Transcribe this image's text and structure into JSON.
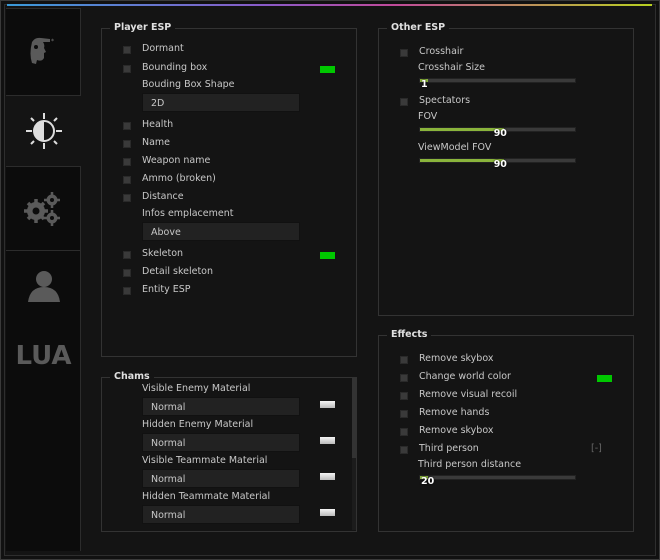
{
  "colors": {
    "accent_green": "#8ab43c",
    "swatch_green": "#00c800",
    "swatch_white": "#e0e0e0"
  },
  "sidebar": {
    "tabs": [
      {
        "icon": "head-aim-icon"
      },
      {
        "icon": "brightness-icon",
        "selected": true
      },
      {
        "icon": "gears-icon"
      },
      {
        "icon": "user-icon"
      },
      {
        "label": "LUA"
      }
    ]
  },
  "player_esp": {
    "title": "Player ESP",
    "dormant": "Dormant",
    "bounding_box": "Bounding box",
    "bounding_box_shape_label": "Bouding Box Shape",
    "bounding_box_shape_value": "2D",
    "health": "Health",
    "name": "Name",
    "weapon_name": "Weapon name",
    "ammo": "Ammo (broken)",
    "distance": "Distance",
    "infos_label": "Infos emplacement",
    "infos_value": "Above",
    "skeleton": "Skeleton",
    "detail_skeleton": "Detail skeleton",
    "entity_esp": "Entity ESP"
  },
  "other_esp": {
    "title": "Other ESP",
    "crosshair": "Crosshair",
    "crosshair_size_label": "Crosshair Size",
    "crosshair_size_value": "1",
    "spectators": "Spectators",
    "fov_label": "FOV",
    "fov_value": "90",
    "viewmodel_fov_label": "ViewModel FOV",
    "viewmodel_fov_value": "90",
    "fill_fraction": {
      "crosshair_size": 0.05,
      "fov": 0.54,
      "viewmodel_fov": 0.54
    }
  },
  "effects": {
    "title": "Effects",
    "remove_skybox": "Remove skybox",
    "change_world_color": "Change world color",
    "remove_visual_recoil": "Remove visual recoil",
    "remove_hands": "Remove hands",
    "remove_skybox_2": "Remove skybox",
    "third_person": "Third person",
    "third_person_key": "[-]",
    "third_person_distance_label": "Third person distance",
    "third_person_distance_value": "20",
    "fill_fraction": {
      "third_person_distance": 0.05
    }
  },
  "chams": {
    "title": "Chams",
    "items": [
      {
        "label": "Visible Enemy Material",
        "value": "Normal"
      },
      {
        "label": "Hidden Enemy Material",
        "value": "Normal"
      },
      {
        "label": "Visible Teammate Material",
        "value": "Normal"
      },
      {
        "label": "Hidden Teammate Material",
        "value": "Normal"
      }
    ]
  }
}
